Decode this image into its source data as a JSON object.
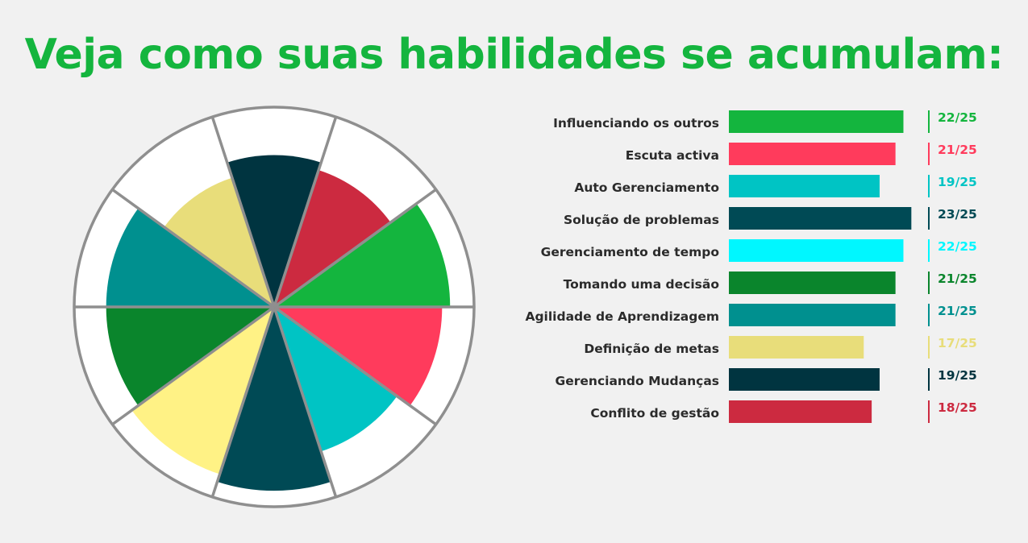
{
  "title": "Veja como suas habilidades se acumulam:",
  "chart_data": {
    "type": "bar",
    "max": 25,
    "categories": [
      "Influenciando os outros",
      "Escuta activa",
      "Auto Gerenciamento",
      "Solução de problemas",
      "Gerenciamento de tempo",
      "Tomando uma decisão",
      "Agilidade de Aprendizagem",
      "Definição de metas",
      "Gerenciando Mudanças",
      "Conflito de gestão"
    ],
    "values": [
      22,
      21,
      19,
      23,
      22,
      21,
      21,
      17,
      19,
      18
    ],
    "score_labels": [
      "22/25",
      "21/25",
      "19/25",
      "23/25",
      "22/25",
      "21/25",
      "21/25",
      "17/25",
      "19/25",
      "18/25"
    ],
    "colors": [
      "#14b53e",
      "#ff3b5c",
      "#00c4c4",
      "#004a55",
      "#00f7ff",
      "#0a852c",
      "#00908f",
      "#e8dd7a",
      "#003440",
      "#cc2a40"
    ],
    "wheel_colors": [
      "#14b53e",
      "#ff3b5c",
      "#00c4c4",
      "#004a55",
      "#fff285",
      "#0a852c",
      "#00908f",
      "#e8dd7a",
      "#003440",
      "#cc2a40"
    ]
  }
}
